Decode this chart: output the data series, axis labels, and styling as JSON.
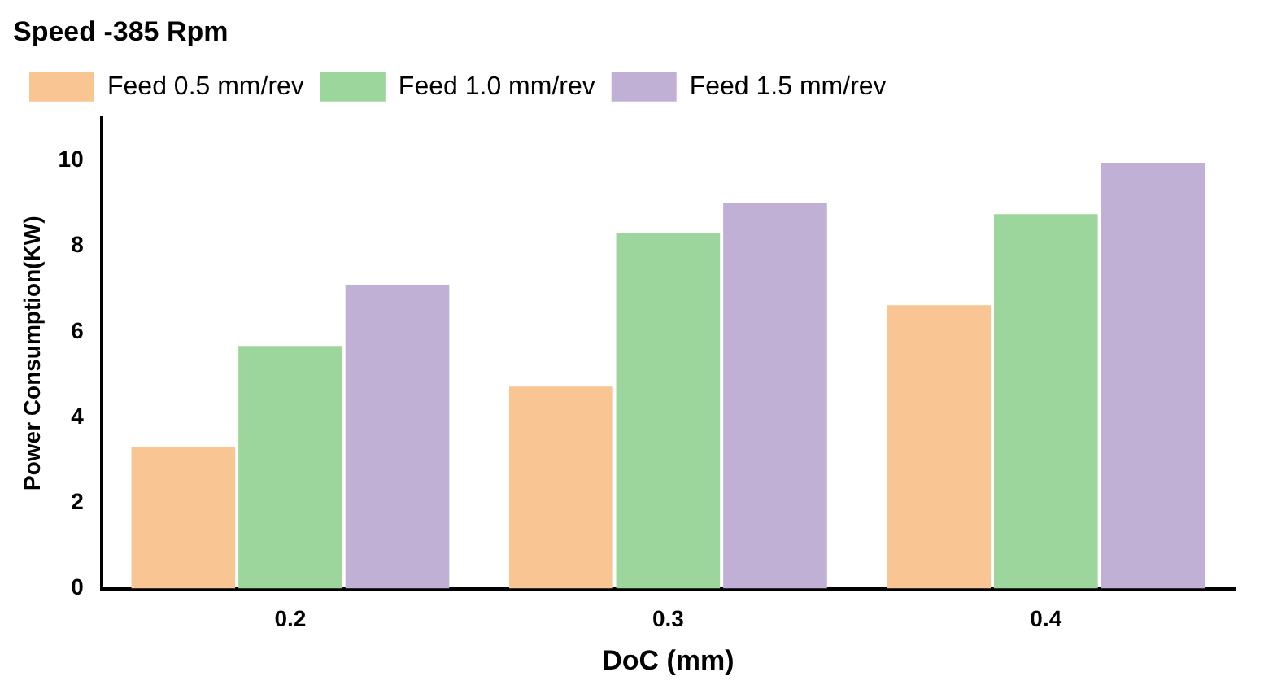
{
  "chart_data": {
    "type": "bar",
    "title": "Speed -385 Rpm",
    "xlabel": "DoC (mm)",
    "ylabel": "Power Consumption(KW)",
    "categories": [
      "0.2",
      "0.3",
      "0.4"
    ],
    "series": [
      {
        "name": "Feed 0.5 mm/rev",
        "color": "#f9c593",
        "values": [
          3.3,
          4.72,
          6.62
        ]
      },
      {
        "name": "Feed 1.0 mm/rev",
        "color": "#9cd69c",
        "values": [
          5.67,
          8.3,
          8.75
        ]
      },
      {
        "name": "Feed 1.5 mm/rev",
        "color": "#c0b0d6",
        "values": [
          7.1,
          9.0,
          9.95
        ]
      }
    ],
    "ylim": [
      0,
      11
    ],
    "yticks": [
      0,
      2,
      4,
      6,
      8,
      10
    ],
    "grid": false,
    "legend": "top left"
  }
}
